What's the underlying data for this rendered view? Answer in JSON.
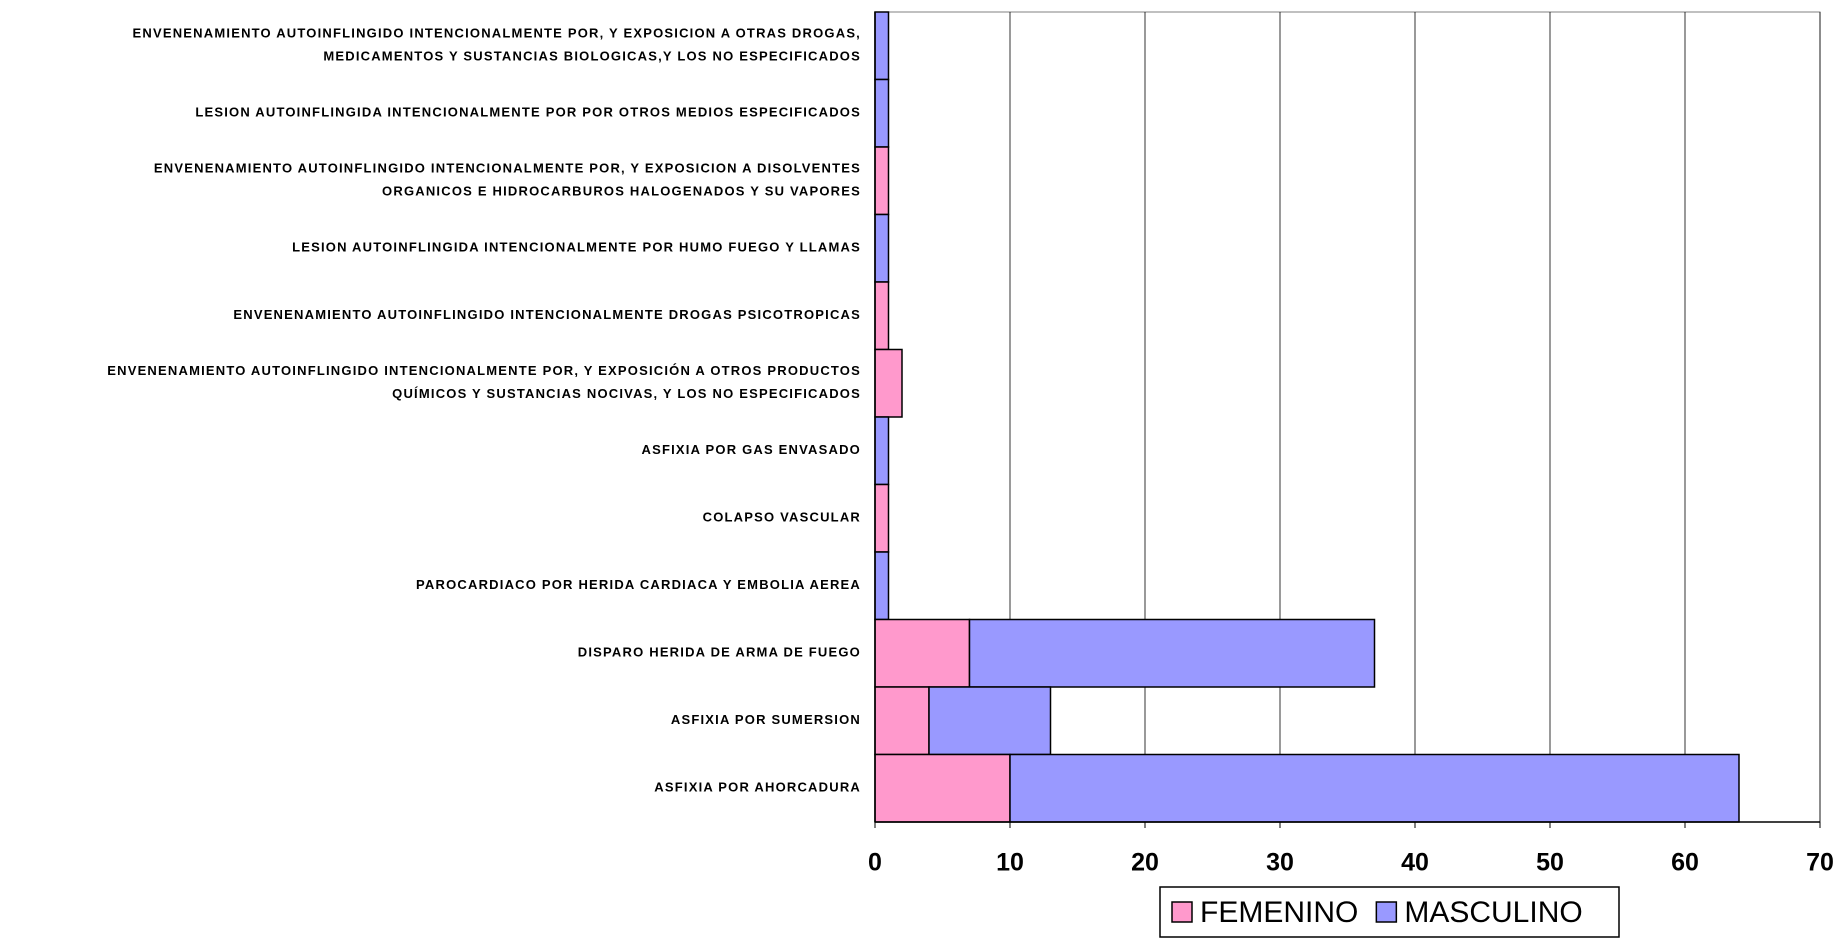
{
  "chart_data": {
    "type": "bar",
    "orientation": "horizontal",
    "stacked": true,
    "categories": [
      [
        "ENVENENAMIENTO AUTOINFLINGIDO INTENCIONALMENTE POR, Y EXPOSICION A OTRAS DROGAS,",
        "MEDICAMENTOS Y SUSTANCIAS BIOLOGICAS,Y LOS NO ESPECIFICADOS"
      ],
      [
        "LESION AUTOINFLINGIDA INTENCIONALMENTE POR POR OTROS MEDIOS ESPECIFICADOS"
      ],
      [
        "ENVENENAMIENTO AUTOINFLINGIDO INTENCIONALMENTE POR, Y EXPOSICION A DISOLVENTES",
        "ORGANICOS E HIDROCARBUROS HALOGENADOS Y SU VAPORES"
      ],
      [
        "LESION AUTOINFLINGIDA INTENCIONALMENTE POR HUMO FUEGO Y LLAMAS"
      ],
      [
        "ENVENENAMIENTO AUTOINFLINGIDO INTENCIONALMENTE DROGAS PSICOTROPICAS"
      ],
      [
        "ENVENENAMIENTO AUTOINFLINGIDO INTENCIONALMENTE POR, Y EXPOSICIÓN A OTROS PRODUCTOS",
        "QUÍMICOS Y SUSTANCIAS NOCIVAS, Y LOS NO ESPECIFICADOS"
      ],
      [
        "ASFIXIA POR GAS ENVASADO"
      ],
      [
        "COLAPSO VASCULAR"
      ],
      [
        "PAROCARDIACO POR HERIDA CARDIACA Y EMBOLIA AEREA"
      ],
      [
        "DISPARO  HERIDA DE ARMA DE FUEGO"
      ],
      [
        "ASFIXIA POR SUMERSION"
      ],
      [
        "ASFIXIA POR  AHORCADURA"
      ]
    ],
    "series": [
      {
        "name": "FEMENINO",
        "color": "#ff99cc",
        "values": [
          0,
          0,
          1,
          0,
          1,
          2,
          0,
          1,
          0,
          7,
          4,
          10
        ]
      },
      {
        "name": "MASCULINO",
        "color": "#9999ff",
        "values": [
          1,
          1,
          0,
          1,
          0,
          0,
          1,
          0,
          1,
          30,
          9,
          54
        ]
      }
    ],
    "xlim": [
      0,
      70
    ],
    "xticks": [
      0,
      10,
      20,
      30,
      40,
      50,
      60,
      70
    ],
    "grid": true,
    "legend": "bottom"
  }
}
